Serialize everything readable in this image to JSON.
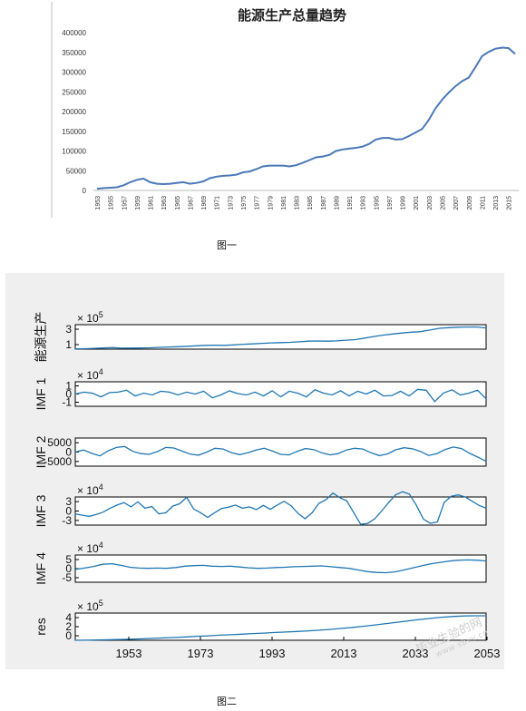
{
  "captions": {
    "fig1": "图一",
    "fig2": "图二"
  },
  "watermark": {
    "text": "毕业生验的网",
    "url": "www.sbvv.cn"
  },
  "colors": {
    "line1": "#4a78b8",
    "line2": "#1f77b4",
    "panel_bg": "#efefef",
    "axis": "#000000"
  },
  "chart_data": [
    {
      "type": "line",
      "title": "能源生产总量趋势",
      "xlabel": "",
      "ylabel": "",
      "ylim": [
        0,
        400000
      ],
      "yticks": [
        "400000",
        "350000",
        "300000",
        "250000",
        "200000",
        "150000",
        "100000",
        "50000",
        "0"
      ],
      "x": [
        1953,
        1954,
        1955,
        1956,
        1957,
        1958,
        1959,
        1960,
        1961,
        1962,
        1963,
        1964,
        1965,
        1966,
        1967,
        1968,
        1969,
        1970,
        1971,
        1972,
        1973,
        1974,
        1975,
        1976,
        1977,
        1978,
        1979,
        1980,
        1981,
        1982,
        1983,
        1984,
        1985,
        1986,
        1987,
        1988,
        1989,
        1990,
        1991,
        1992,
        1993,
        1994,
        1995,
        1996,
        1997,
        1998,
        1999,
        2000,
        2001,
        2002,
        2003,
        2004,
        2005,
        2006,
        2007,
        2008,
        2009,
        2010,
        2011,
        2012,
        2013,
        2014,
        2015,
        2016
      ],
      "xticks": [
        "1953",
        "1955",
        "1957",
        "1959",
        "1961",
        "1963",
        "1965",
        "1967",
        "1969",
        "1971",
        "1973",
        "1975",
        "1977",
        "1979",
        "1981",
        "1983",
        "1985",
        "1987",
        "1989",
        "1991",
        "1993",
        "1995",
        "1997",
        "1999",
        "2001",
        "2003",
        "2005",
        "2007",
        "2009",
        "2011",
        "2013",
        "2015"
      ],
      "series": [
        {
          "values": [
            4000,
            6000,
            7000,
            8000,
            13000,
            21000,
            27000,
            30000,
            21000,
            17000,
            16000,
            17000,
            19000,
            21000,
            17000,
            19000,
            23000,
            31000,
            35000,
            37000,
            38000,
            40000,
            46000,
            48000,
            54000,
            61000,
            63000,
            63000,
            63000,
            61000,
            64000,
            70000,
            77000,
            84000,
            86000,
            90000,
            100000,
            104000,
            106000,
            108000,
            111000,
            118000,
            129000,
            133000,
            133000,
            129000,
            130000,
            138000,
            147000,
            156000,
            179000,
            208000,
            230000,
            248000,
            264000,
            277000,
            286000,
            312000,
            340000,
            351000,
            359000,
            362000,
            361000,
            346000
          ]
        }
      ]
    },
    {
      "type": "line",
      "title": "",
      "panels": [
        {
          "ylabel": "能源生产",
          "exponent": "× 10^5",
          "ytick_labels": [
            "3",
            "1"
          ],
          "ylim": [
            0,
            4
          ],
          "values": [
            0.04,
            0.07,
            0.13,
            0.2,
            0.25,
            0.17,
            0.18,
            0.2,
            0.22,
            0.3,
            0.36,
            0.4,
            0.47,
            0.55,
            0.62,
            0.63,
            0.62,
            0.7,
            0.8,
            0.86,
            0.95,
            1.02,
            1.06,
            1.11,
            1.2,
            1.3,
            1.33,
            1.3,
            1.35,
            1.47,
            1.56,
            1.8,
            2.08,
            2.3,
            2.48,
            2.64,
            2.77,
            2.86,
            3.12,
            3.4,
            3.51,
            3.59,
            3.62,
            3.61,
            3.46
          ]
        },
        {
          "ylabel": "IMF 1",
          "exponent": "× 10^4",
          "ytick_labels": [
            "1",
            "0",
            "-1"
          ],
          "ylim": [
            -1.3,
            1.3
          ],
          "values": [
            0,
            0.2,
            0.1,
            -0.3,
            0.15,
            0.2,
            0.4,
            -0.2,
            0.1,
            -0.1,
            0.3,
            0.2,
            -0.1,
            0.2,
            0,
            0.3,
            -0.4,
            -0.1,
            0.35,
            0.05,
            -0.1,
            0.2,
            -0.2,
            0.35,
            -0.3,
            0.3,
            0.1,
            -0.3,
            0.45,
            0.1,
            -0.1,
            0.35,
            -0.2,
            0.3,
            0,
            0.4,
            -0.2,
            -0.15,
            0.3,
            -0.2,
            0.5,
            0.4,
            -0.8,
            0.1,
            0.45,
            -0.1,
            0.1,
            0.4,
            -0.5
          ]
        },
        {
          "ylabel": "IMF 2",
          "exponent": "",
          "ytick_labels": [
            "5000",
            "0",
            "-5000"
          ],
          "ylim": [
            -5500,
            5500
          ],
          "values": [
            0,
            800,
            -500,
            -1500,
            500,
            1800,
            2200,
            300,
            -600,
            -900,
            200,
            1800,
            1600,
            400,
            -800,
            -1200,
            0,
            1500,
            1200,
            -200,
            -1000,
            -300,
            800,
            1500,
            400,
            -900,
            -1100,
            300,
            1400,
            1000,
            -300,
            -1100,
            -600,
            800,
            1500,
            1200,
            -300,
            -1400,
            -700,
            900,
            1700,
            1300,
            300,
            -1300,
            -600,
            1000,
            2000,
            1400,
            -500,
            -2000,
            -3600
          ]
        },
        {
          "ylabel": "IMF 3",
          "exponent": "× 10^4",
          "ytick_labels": [
            "3",
            "0",
            "-3"
          ],
          "ylim": [
            -4,
            4
          ],
          "values": [
            -0.8,
            -1.2,
            -1.5,
            -1,
            -0.3,
            0.8,
            1.7,
            2.4,
            1.2,
            2.6,
            0.8,
            1.3,
            -0.8,
            -0.5,
            1.4,
            2.1,
            3.9,
            0.6,
            -0.5,
            -1.8,
            -0.5,
            0.7,
            1.1,
            1.7,
            0.8,
            1.2,
            0.4,
            1.6,
            0.5,
            1.7,
            2.8,
            1.5,
            -0.7,
            -2.2,
            -0.5,
            2.2,
            3.2,
            5.1,
            3.8,
            2.9,
            -0.5,
            -3.8,
            -3.5,
            -2.2,
            0,
            2.4,
            4.6,
            5.5,
            4.8,
            1.6,
            -2.3,
            -3.5,
            -3.1,
            2.5,
            4.2,
            4.6,
            4,
            2.8,
            1.6,
            0.8
          ]
        },
        {
          "ylabel": "IMF 4",
          "exponent": "× 10^4",
          "ytick_labels": [
            "5",
            "0",
            "-5"
          ],
          "ylim": [
            -5,
            5
          ],
          "values": [
            -0.3,
            0.2,
            0.8,
            1.6,
            1.8,
            1.2,
            0.5,
            0.2,
            0.1,
            0.2,
            0.1,
            0.4,
            0.9,
            1.1,
            1.2,
            0.9,
            0.8,
            0.9,
            0.6,
            0.3,
            0.1,
            0.2,
            0.4,
            0.5,
            0.7,
            0.8,
            0.9,
            1,
            0.7,
            0.4,
            0.1,
            -0.5,
            -1.1,
            -1.4,
            -1.5,
            -1.2,
            -0.5,
            0.3,
            1.1,
            1.8,
            2.3,
            2.8,
            3.1,
            3.2,
            3.1,
            2.8
          ]
        },
        {
          "ylabel": "res",
          "exponent": "× 10^5",
          "ytick_labels": [
            "4",
            "2",
            "0"
          ],
          "ylim": [
            0,
            4
          ],
          "values": [
            0,
            0.02,
            0.05,
            0.08,
            0.12,
            0.16,
            0.22,
            0.28,
            0.35,
            0.42,
            0.5,
            0.58,
            0.66,
            0.74,
            0.82,
            0.9,
            0.98,
            1.06,
            1.14,
            1.22,
            1.3,
            1.38,
            1.48,
            1.6,
            1.74,
            1.9,
            2.07,
            2.25,
            2.45,
            2.65,
            2.85,
            3.05,
            3.22,
            3.38,
            3.5,
            3.57,
            3.6,
            3.6
          ]
        }
      ],
      "xticks": [
        "1953",
        "1973",
        "1993",
        "2013",
        "2033",
        "2053"
      ]
    }
  ]
}
